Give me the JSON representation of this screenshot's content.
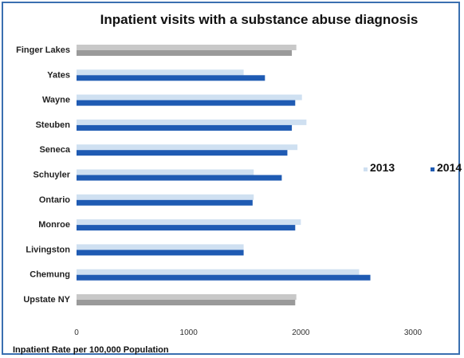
{
  "chart_data": {
    "type": "bar",
    "orientation": "horizontal",
    "title": "Inpatient visits with a substance abuse diagnosis",
    "xlabel": "Inpatient Rate per 100,000 Population",
    "ylabel": "",
    "xlim": [
      0,
      3000
    ],
    "xticks": [
      0,
      1000,
      2000,
      3000
    ],
    "categories": [
      "Finger Lakes",
      "Yates",
      "Wayne",
      "Steuben",
      "Seneca",
      "Schuyler",
      "Ontario",
      "Monroe",
      "Livingston",
      "Chemung",
      "Upstate NY"
    ],
    "series": [
      {
        "name": "2013",
        "values": [
          1960,
          1490,
          2010,
          2050,
          1970,
          1580,
          1580,
          2000,
          1490,
          2520,
          1960
        ]
      },
      {
        "name": "2014",
        "values": [
          1920,
          1680,
          1950,
          1920,
          1880,
          1830,
          1570,
          1950,
          1490,
          2620,
          1950
        ]
      }
    ],
    "legend_position": "right",
    "grid": false,
    "colors": {
      "2013": "#cfe0f1",
      "2014": "#1f5bb3",
      "summary_2013": "#c8c8c8",
      "summary_2014": "#9a9a9a"
    }
  }
}
